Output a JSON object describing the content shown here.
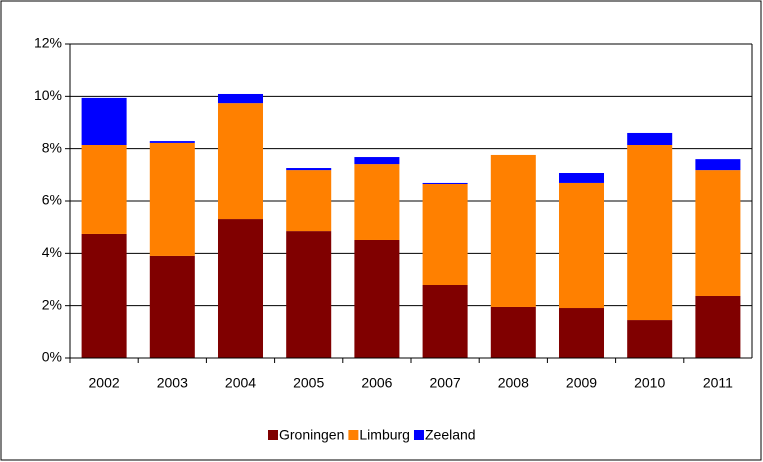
{
  "chart_data": {
    "type": "stacked_bar",
    "categories": [
      "2002",
      "2003",
      "2004",
      "2005",
      "2006",
      "2007",
      "2008",
      "2009",
      "2010",
      "2011"
    ],
    "series": [
      {
        "name": "Groningen",
        "color": "#800000",
        "values": [
          4.74,
          3.9,
          5.31,
          4.85,
          4.51,
          2.79,
          1.95,
          1.91,
          1.45,
          2.37
        ]
      },
      {
        "name": "Limburg",
        "color": "#ff8000",
        "values": [
          3.4,
          4.32,
          4.43,
          2.33,
          2.9,
          3.86,
          5.81,
          4.78,
          6.69,
          4.81
        ]
      },
      {
        "name": "Zeeland",
        "color": "#0000ff",
        "values": [
          1.8,
          0.07,
          0.35,
          0.08,
          0.27,
          0.04,
          0,
          0.38,
          0.46,
          0.42
        ]
      }
    ],
    "ylim": [
      0,
      12
    ],
    "yticks": [
      {
        "value": 0,
        "label": "0%"
      },
      {
        "value": 2,
        "label": "2%"
      },
      {
        "value": 4,
        "label": "4%"
      },
      {
        "value": 6,
        "label": "6%"
      },
      {
        "value": 8,
        "label": "8%"
      },
      {
        "value": 10,
        "label": "10%"
      },
      {
        "value": 12,
        "label": "12%"
      }
    ],
    "grid": true,
    "legend": "bottom"
  }
}
